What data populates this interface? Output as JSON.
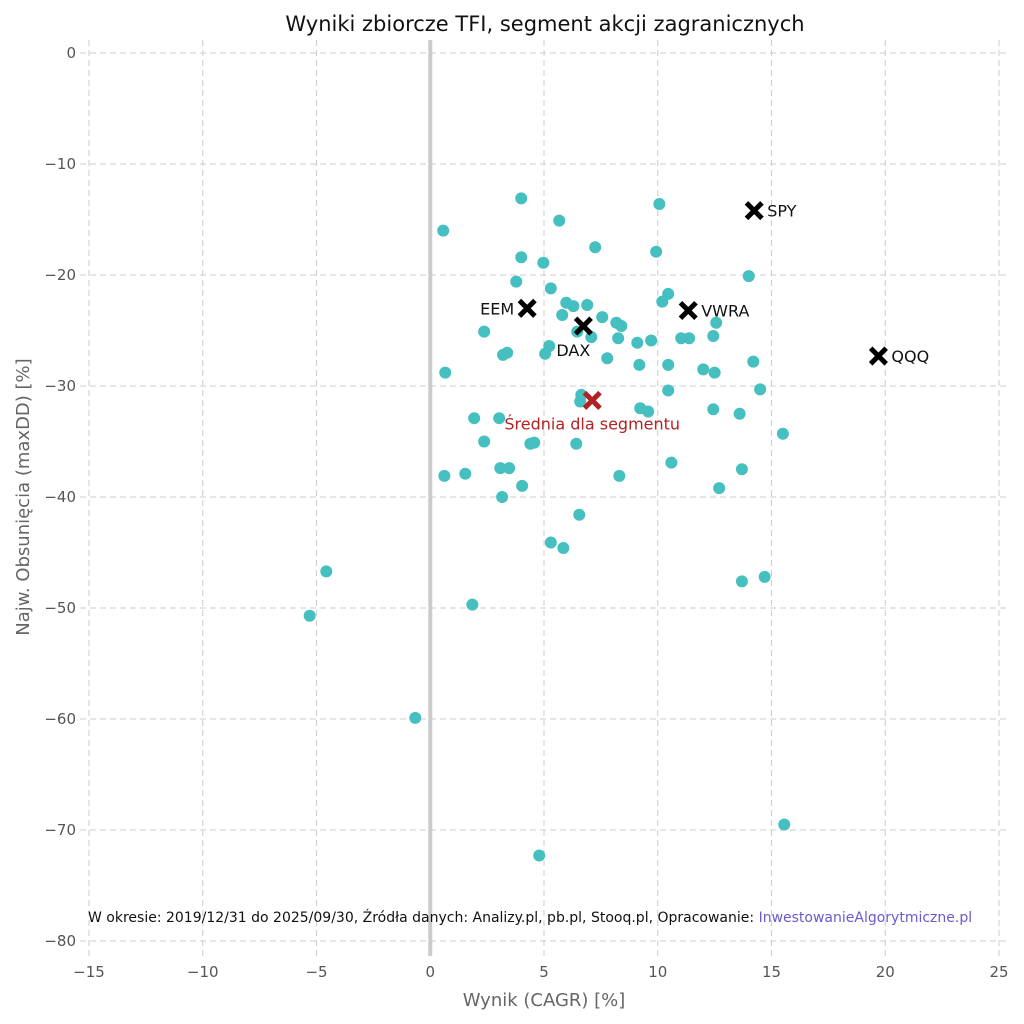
{
  "chart_data": {
    "type": "scatter",
    "title": "Wyniki zbiorcze TFI, segment akcji zagranicznych",
    "xlabel": "Wynik (CAGR) [%]",
    "ylabel": "Najw. Obsunięcia (maxDD) [%]",
    "xlim": [
      -15,
      25
    ],
    "ylim": [
      -80,
      0
    ],
    "xticks": [
      -15,
      -10,
      -5,
      0,
      5,
      10,
      15,
      20,
      25
    ],
    "yticks": [
      0,
      -10,
      -20,
      -30,
      -40,
      -50,
      -60,
      -70,
      -80
    ],
    "grid": true,
    "colors": {
      "funds": "#45bfbf",
      "benchmark": "#000000",
      "average": "#b22222",
      "zero_line": "#cccccc",
      "link": "#6a5acd"
    },
    "funds": [
      [
        4.0,
        -13.1
      ],
      [
        10.07,
        -13.6
      ],
      [
        5.67,
        -15.1
      ],
      [
        0.57,
        -16.0
      ],
      [
        7.25,
        -17.5
      ],
      [
        9.93,
        -17.9
      ],
      [
        4.0,
        -18.4
      ],
      [
        4.97,
        -18.9
      ],
      [
        14.0,
        -20.1
      ],
      [
        3.78,
        -20.6
      ],
      [
        5.3,
        -21.2
      ],
      [
        10.46,
        -21.7
      ],
      [
        5.98,
        -22.5
      ],
      [
        6.29,
        -22.8
      ],
      [
        6.9,
        -22.7
      ],
      [
        10.2,
        -22.4
      ],
      [
        5.8,
        -23.6
      ],
      [
        7.56,
        -23.8
      ],
      [
        8.18,
        -24.3
      ],
      [
        8.4,
        -24.6
      ],
      [
        12.57,
        -24.3
      ],
      [
        6.46,
        -25.1
      ],
      [
        2.37,
        -25.1
      ],
      [
        7.08,
        -25.6
      ],
      [
        8.26,
        -25.7
      ],
      [
        11.03,
        -25.7
      ],
      [
        11.38,
        -25.7
      ],
      [
        12.44,
        -25.5
      ],
      [
        9.71,
        -25.9
      ],
      [
        9.1,
        -26.1
      ],
      [
        5.23,
        -26.4
      ],
      [
        5.05,
        -27.1
      ],
      [
        3.38,
        -27.0
      ],
      [
        3.2,
        -27.2
      ],
      [
        7.78,
        -27.5
      ],
      [
        14.2,
        -27.8
      ],
      [
        10.46,
        -28.1
      ],
      [
        9.19,
        -28.1
      ],
      [
        12.0,
        -28.5
      ],
      [
        12.5,
        -28.8
      ],
      [
        0.66,
        -28.8
      ],
      [
        14.5,
        -30.3
      ],
      [
        10.46,
        -30.4
      ],
      [
        6.64,
        -30.8
      ],
      [
        6.59,
        -31.4
      ],
      [
        9.23,
        -32.0
      ],
      [
        9.58,
        -32.3
      ],
      [
        12.44,
        -32.1
      ],
      [
        13.6,
        -32.5
      ],
      [
        1.93,
        -32.9
      ],
      [
        3.03,
        -32.9
      ],
      [
        15.5,
        -34.3
      ],
      [
        2.37,
        -35.0
      ],
      [
        4.57,
        -35.1
      ],
      [
        4.4,
        -35.2
      ],
      [
        6.42,
        -35.2
      ],
      [
        10.6,
        -36.9
      ],
      [
        3.08,
        -37.4
      ],
      [
        3.47,
        -37.4
      ],
      [
        13.7,
        -37.5
      ],
      [
        0.62,
        -38.1
      ],
      [
        1.54,
        -37.9
      ],
      [
        8.31,
        -38.1
      ],
      [
        4.04,
        -39.0
      ],
      [
        12.7,
        -39.2
      ],
      [
        3.16,
        -40.0
      ],
      [
        6.55,
        -41.6
      ],
      [
        5.3,
        -44.1
      ],
      [
        5.85,
        -44.6
      ],
      [
        -4.57,
        -46.7
      ],
      [
        14.7,
        -47.2
      ],
      [
        13.7,
        -47.6
      ],
      [
        1.85,
        -49.7
      ],
      [
        -5.3,
        -50.7
      ],
      [
        -0.66,
        -59.9
      ],
      [
        15.56,
        -69.5
      ],
      [
        4.79,
        -72.3
      ]
    ],
    "benchmarks": [
      {
        "name": "SPY",
        "x": 14.24,
        "y": -14.2,
        "label_side": "right"
      },
      {
        "name": "EEM",
        "x": 4.26,
        "y": -23.0,
        "label_side": "left"
      },
      {
        "name": "VWRA",
        "x": 11.34,
        "y": -23.2,
        "label_side": "right"
      },
      {
        "name": "DAX",
        "x": 6.73,
        "y": -24.6,
        "label_side": "below"
      },
      {
        "name": "QQQ",
        "x": 19.7,
        "y": -27.3,
        "label_side": "right"
      }
    ],
    "average": {
      "name": "Średnia dla segmentu",
      "x": 7.12,
      "y": -31.3
    }
  },
  "footer": {
    "text": "W okresie: 2019/12/31 do 2025/09/30, Źródła danych: Analizy.pl, pb.pl, Stooq.pl, Opracowanie: ",
    "link": "InwestowanieAlgorytmiczne.pl"
  }
}
